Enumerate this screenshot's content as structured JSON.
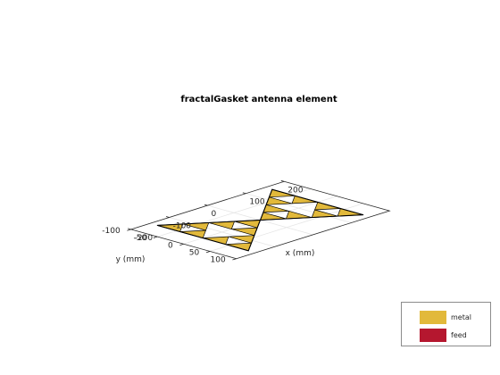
{
  "chart_data": {
    "type": "3d-surface",
    "title": "fractalGasket antenna element",
    "xlabel": "x (mm)",
    "ylabel": "y (mm)",
    "xlim": [
      -200,
      200
    ],
    "ylim": [
      -100,
      100
    ],
    "x_ticks": [
      -200,
      -100,
      0,
      100,
      200
    ],
    "y_ticks": [
      -100,
      -50,
      0,
      50,
      100
    ],
    "x_tick_labels": [
      "-200",
      "-100",
      "0",
      "100",
      "200"
    ],
    "y_tick_labels": [
      "-100",
      "-50",
      "0",
      "50",
      "100"
    ],
    "grid": true,
    "legend_position": "bottom-right",
    "legend": [
      {
        "label": "metal",
        "color": "#e2b93b"
      },
      {
        "label": "feed",
        "color": "#b5172f"
      }
    ],
    "gasket": {
      "iterations": 2,
      "left_big_triangle_xy": [
        [
          0,
          0
        ],
        [
          -150,
          86.6
        ],
        [
          -150,
          -86.6
        ]
      ],
      "right_big_triangle_xy": [
        [
          0,
          0
        ],
        [
          150,
          86.6
        ],
        [
          150,
          -86.6
        ]
      ],
      "metal_color": "#e2b93b",
      "feed_color": "#b5172f"
    }
  }
}
